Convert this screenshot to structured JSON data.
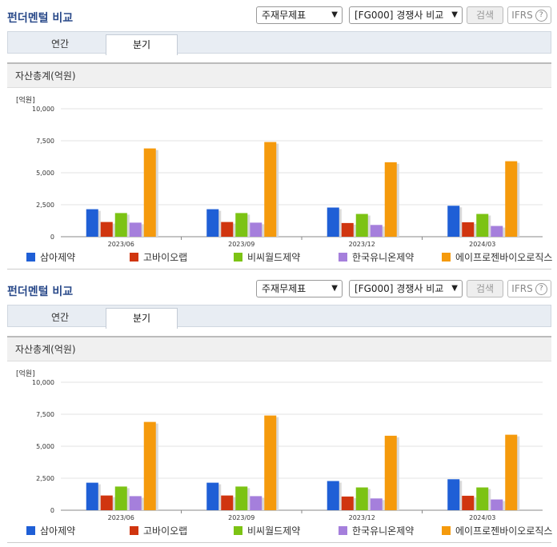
{
  "header": {
    "title": "펀더멘털 비교",
    "statement_select": "주재무제표",
    "peer_select": "[FG000] 경쟁사 비교",
    "search_label": "검색",
    "ifrs_label": "IFRS",
    "help_label": "?"
  },
  "tabs": [
    {
      "label": "연간"
    },
    {
      "label": "분기"
    }
  ],
  "active_tab": 1,
  "section_title": "자산총계(억원)",
  "unit_label": "[억원]",
  "chart_data": {
    "type": "bar",
    "title": "자산총계(억원)",
    "ylabel": "[억원]",
    "ylim": [
      0,
      10000
    ],
    "yticks": [
      "0",
      "2,500",
      "5,000",
      "7,500",
      "10,000"
    ],
    "categories": [
      "2023/06",
      "2023/09",
      "2023/12",
      "2024/03"
    ],
    "series": [
      {
        "name": "삼아제약",
        "color": "#1f5fd6",
        "values": [
          2150,
          2150,
          2280,
          2420
        ]
      },
      {
        "name": "고바이오랩",
        "color": "#d0350f",
        "values": [
          1150,
          1150,
          1070,
          1130
        ]
      },
      {
        "name": "비씨월드제약",
        "color": "#7cc314",
        "values": [
          1850,
          1850,
          1780,
          1780
        ]
      },
      {
        "name": "한국유니온제약",
        "color": "#a57fdc",
        "values": [
          1100,
          1100,
          920,
          840
        ]
      },
      {
        "name": "에이프로젠바이오로직스",
        "color": "#f59a0c",
        "values": [
          6900,
          7400,
          5820,
          5900
        ]
      }
    ]
  }
}
